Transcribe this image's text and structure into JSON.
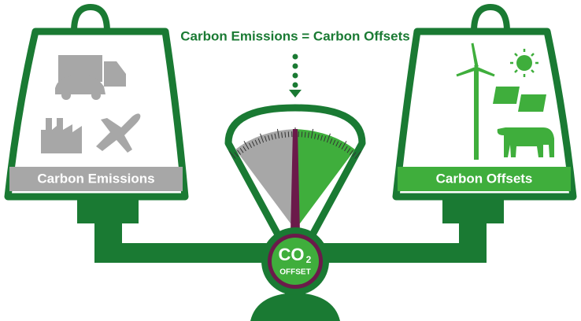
{
  "title": "Carbon Emissions = Carbon Offsets",
  "left_weight": {
    "label": "Carbon Emissions"
  },
  "right_weight": {
    "label": "Carbon Offsets"
  },
  "badge": {
    "text": "CO",
    "subscript": "2",
    "caption": "OFFSET"
  }
}
